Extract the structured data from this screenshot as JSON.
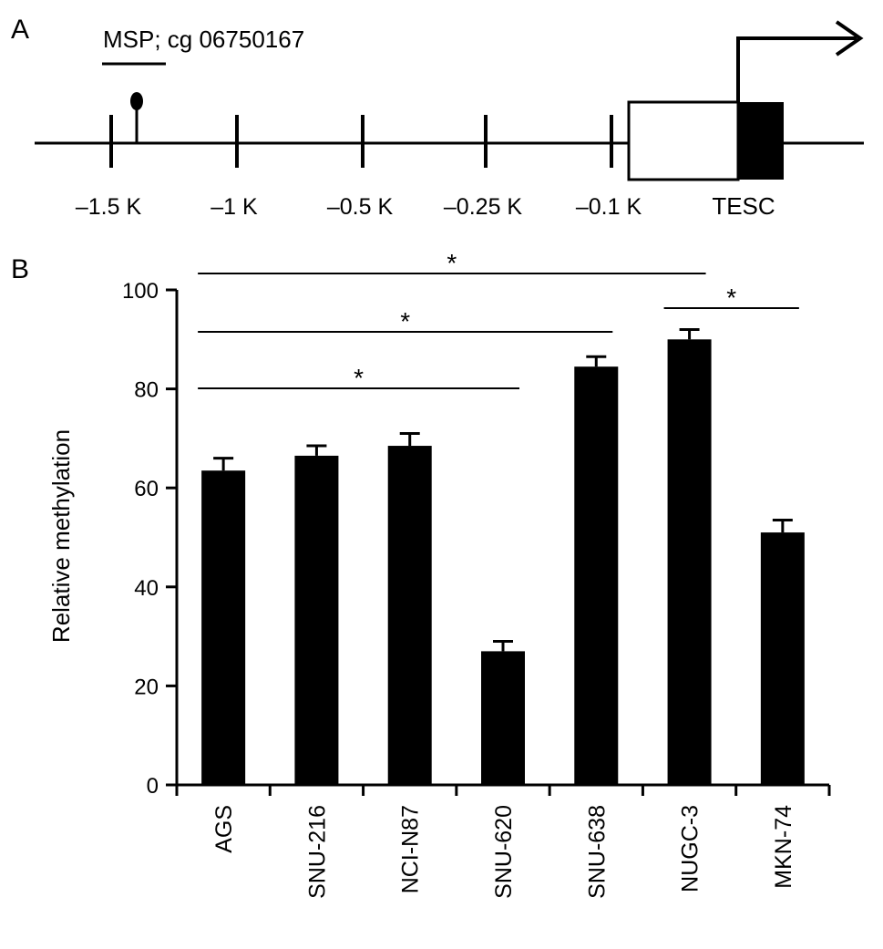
{
  "panel_a": {
    "label": "A",
    "msp_label": "MSP; cg 06750167",
    "positions": [
      "–1.5 K",
      "–1 K",
      "–0.5 K",
      "–0.25 K",
      "–0.1 K"
    ],
    "gene_label": "TESC"
  },
  "chart_data": {
    "type": "bar",
    "panel_label": "B",
    "categories": [
      "AGS",
      "SNU-216",
      "NCI-N87",
      "SNU-620",
      "SNU-638",
      "NUGC-3",
      "MKN-74"
    ],
    "values": [
      63.5,
      66.5,
      68.5,
      27,
      84.5,
      90,
      51
    ],
    "errors": [
      2.5,
      2,
      2.5,
      2,
      2,
      2,
      2.5
    ],
    "ylabel": "Relative methylation",
    "ylim": [
      0,
      100
    ],
    "yticks": [
      0,
      20,
      40,
      60,
      80,
      100
    ],
    "bar_color": "#000000",
    "significance": [
      {
        "from": "AGS",
        "to": "NUGC-3",
        "label": "*"
      },
      {
        "from": "AGS",
        "to": "SNU-638",
        "label": "*"
      },
      {
        "from": "AGS",
        "to": "SNU-620",
        "label": "*"
      },
      {
        "from": "NUGC-3",
        "to": "MKN-74",
        "label": "*"
      }
    ]
  }
}
